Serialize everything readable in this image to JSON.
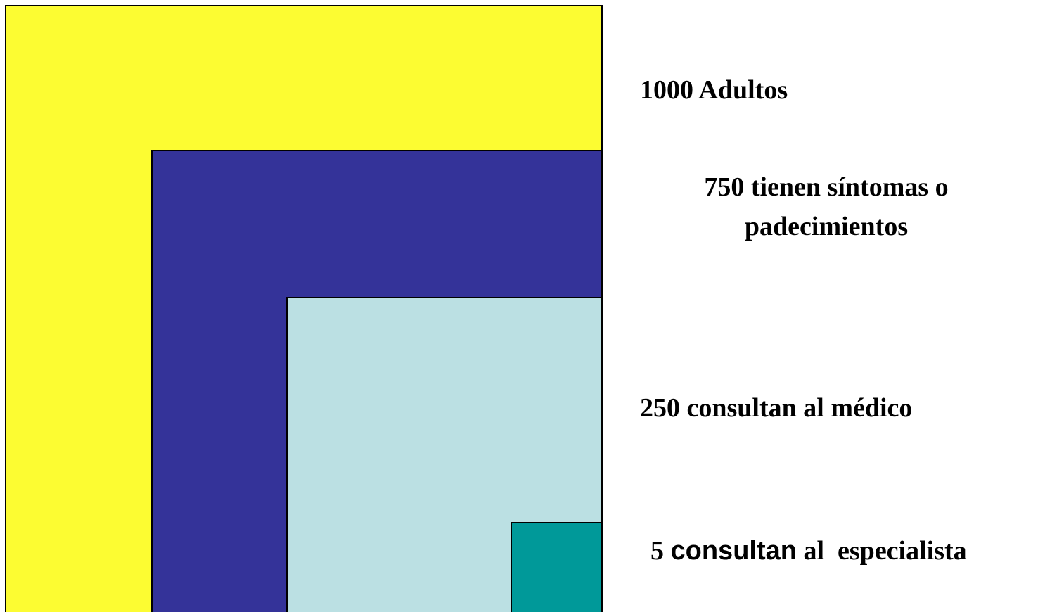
{
  "labels": [
    {
      "lines": [
        "1000 Adultos"
      ]
    },
    {
      "lines": [
        "750 tienen síntomas o",
        "padecimientos"
      ]
    },
    {
      "lines": [
        "250 consultan al médico"
      ]
    },
    {
      "parts": [
        "5",
        "consultan",
        "al  especialista"
      ]
    }
  ]
}
